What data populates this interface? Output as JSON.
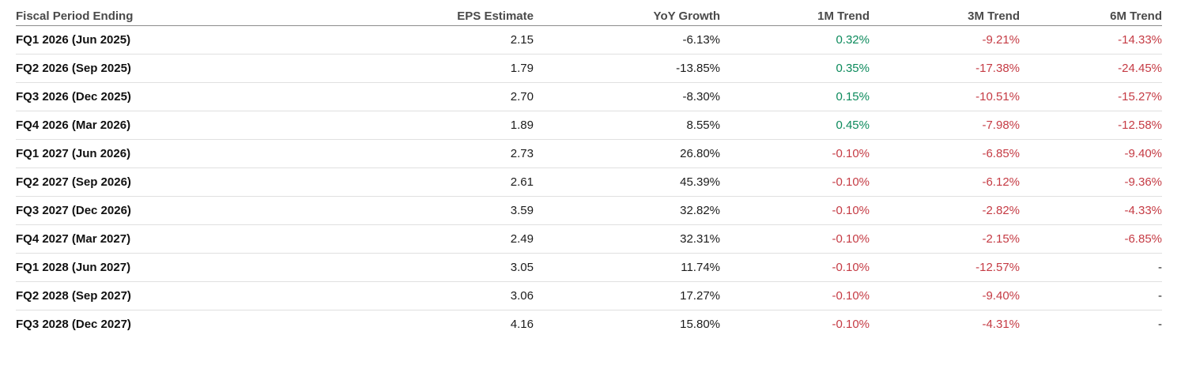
{
  "table": {
    "columns": [
      {
        "id": "period",
        "label": "Fiscal Period Ending"
      },
      {
        "id": "eps",
        "label": "EPS Estimate"
      },
      {
        "id": "yoy",
        "label": "YoY Growth"
      },
      {
        "id": "m1",
        "label": "1M Trend"
      },
      {
        "id": "m3",
        "label": "3M Trend"
      },
      {
        "id": "m6",
        "label": "6M Trend"
      }
    ],
    "rows": [
      {
        "period": "FQ1 2026 (Jun 2025)",
        "eps": "2.15",
        "yoy": "-6.13%",
        "m1": "0.32%",
        "m3": "-9.21%",
        "m6": "-14.33%"
      },
      {
        "period": "FQ2 2026 (Sep 2025)",
        "eps": "1.79",
        "yoy": "-13.85%",
        "m1": "0.35%",
        "m3": "-17.38%",
        "m6": "-24.45%"
      },
      {
        "period": "FQ3 2026 (Dec 2025)",
        "eps": "2.70",
        "yoy": "-8.30%",
        "m1": "0.15%",
        "m3": "-10.51%",
        "m6": "-15.27%"
      },
      {
        "period": "FQ4 2026 (Mar 2026)",
        "eps": "1.89",
        "yoy": "8.55%",
        "m1": "0.45%",
        "m3": "-7.98%",
        "m6": "-12.58%"
      },
      {
        "period": "FQ1 2027 (Jun 2026)",
        "eps": "2.73",
        "yoy": "26.80%",
        "m1": "-0.10%",
        "m3": "-6.85%",
        "m6": "-9.40%"
      },
      {
        "period": "FQ2 2027 (Sep 2026)",
        "eps": "2.61",
        "yoy": "45.39%",
        "m1": "-0.10%",
        "m3": "-6.12%",
        "m6": "-9.36%"
      },
      {
        "period": "FQ3 2027 (Dec 2026)",
        "eps": "3.59",
        "yoy": "32.82%",
        "m1": "-0.10%",
        "m3": "-2.82%",
        "m6": "-4.33%"
      },
      {
        "period": "FQ4 2027 (Mar 2027)",
        "eps": "2.49",
        "yoy": "32.31%",
        "m1": "-0.10%",
        "m3": "-2.15%",
        "m6": "-6.85%"
      },
      {
        "period": "FQ1 2028 (Jun 2027)",
        "eps": "3.05",
        "yoy": "11.74%",
        "m1": "-0.10%",
        "m3": "-12.57%",
        "m6": "-"
      },
      {
        "period": "FQ2 2028 (Sep 2027)",
        "eps": "3.06",
        "yoy": "17.27%",
        "m1": "-0.10%",
        "m3": "-9.40%",
        "m6": "-"
      },
      {
        "period": "FQ3 2028 (Dec 2027)",
        "eps": "4.16",
        "yoy": "15.80%",
        "m1": "-0.10%",
        "m3": "-4.31%",
        "m6": "-"
      }
    ]
  },
  "colors": {
    "trend_positive": "#0c8a5c",
    "trend_negative": "#c53b44",
    "header_text": "#4a4a4a",
    "row_label_text": "#111111",
    "value_text": "#1c1c1c",
    "neutral_dash": "#222222",
    "header_border": "#8c8c8c",
    "row_border": "#e0e0e0",
    "background": "#ffffff"
  }
}
